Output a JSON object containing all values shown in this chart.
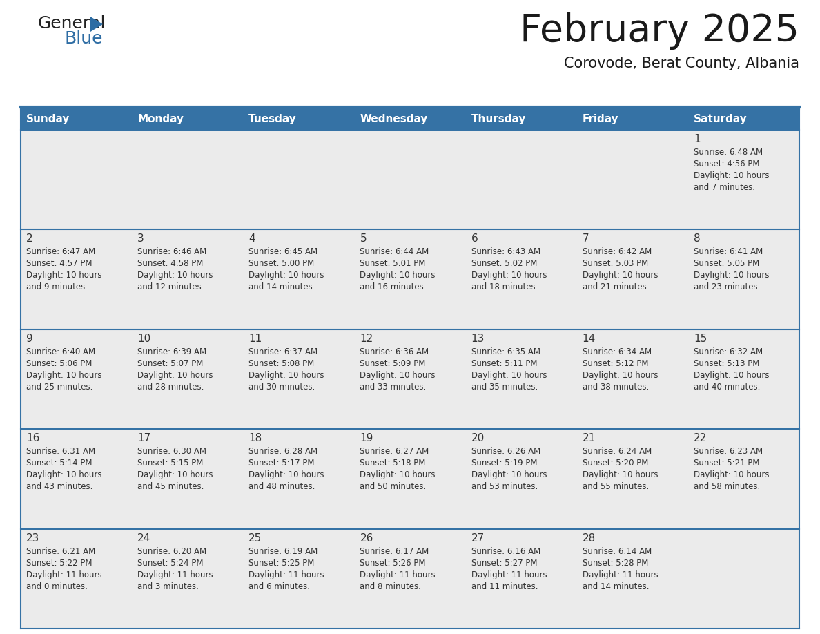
{
  "title": "February 2025",
  "subtitle": "Corovode, Berat County, Albania",
  "header_bg": "#3572A5",
  "header_text_color": "#FFFFFF",
  "cell_bg_light": "#EBEBEB",
  "cell_bg_white": "#FFFFFF",
  "border_color": "#3572A5",
  "day_headers": [
    "Sunday",
    "Monday",
    "Tuesday",
    "Wednesday",
    "Thursday",
    "Friday",
    "Saturday"
  ],
  "days": [
    {
      "day": 1,
      "col": 6,
      "row": 0,
      "sunrise": "6:48 AM",
      "sunset": "4:56 PM",
      "daylight_line1": "Daylight: 10 hours",
      "daylight_line2": "and 7 minutes."
    },
    {
      "day": 2,
      "col": 0,
      "row": 1,
      "sunrise": "6:47 AM",
      "sunset": "4:57 PM",
      "daylight_line1": "Daylight: 10 hours",
      "daylight_line2": "and 9 minutes."
    },
    {
      "day": 3,
      "col": 1,
      "row": 1,
      "sunrise": "6:46 AM",
      "sunset": "4:58 PM",
      "daylight_line1": "Daylight: 10 hours",
      "daylight_line2": "and 12 minutes."
    },
    {
      "day": 4,
      "col": 2,
      "row": 1,
      "sunrise": "6:45 AM",
      "sunset": "5:00 PM",
      "daylight_line1": "Daylight: 10 hours",
      "daylight_line2": "and 14 minutes."
    },
    {
      "day": 5,
      "col": 3,
      "row": 1,
      "sunrise": "6:44 AM",
      "sunset": "5:01 PM",
      "daylight_line1": "Daylight: 10 hours",
      "daylight_line2": "and 16 minutes."
    },
    {
      "day": 6,
      "col": 4,
      "row": 1,
      "sunrise": "6:43 AM",
      "sunset": "5:02 PM",
      "daylight_line1": "Daylight: 10 hours",
      "daylight_line2": "and 18 minutes."
    },
    {
      "day": 7,
      "col": 5,
      "row": 1,
      "sunrise": "6:42 AM",
      "sunset": "5:03 PM",
      "daylight_line1": "Daylight: 10 hours",
      "daylight_line2": "and 21 minutes."
    },
    {
      "day": 8,
      "col": 6,
      "row": 1,
      "sunrise": "6:41 AM",
      "sunset": "5:05 PM",
      "daylight_line1": "Daylight: 10 hours",
      "daylight_line2": "and 23 minutes."
    },
    {
      "day": 9,
      "col": 0,
      "row": 2,
      "sunrise": "6:40 AM",
      "sunset": "5:06 PM",
      "daylight_line1": "Daylight: 10 hours",
      "daylight_line2": "and 25 minutes."
    },
    {
      "day": 10,
      "col": 1,
      "row": 2,
      "sunrise": "6:39 AM",
      "sunset": "5:07 PM",
      "daylight_line1": "Daylight: 10 hours",
      "daylight_line2": "and 28 minutes."
    },
    {
      "day": 11,
      "col": 2,
      "row": 2,
      "sunrise": "6:37 AM",
      "sunset": "5:08 PM",
      "daylight_line1": "Daylight: 10 hours",
      "daylight_line2": "and 30 minutes."
    },
    {
      "day": 12,
      "col": 3,
      "row": 2,
      "sunrise": "6:36 AM",
      "sunset": "5:09 PM",
      "daylight_line1": "Daylight: 10 hours",
      "daylight_line2": "and 33 minutes."
    },
    {
      "day": 13,
      "col": 4,
      "row": 2,
      "sunrise": "6:35 AM",
      "sunset": "5:11 PM",
      "daylight_line1": "Daylight: 10 hours",
      "daylight_line2": "and 35 minutes."
    },
    {
      "day": 14,
      "col": 5,
      "row": 2,
      "sunrise": "6:34 AM",
      "sunset": "5:12 PM",
      "daylight_line1": "Daylight: 10 hours",
      "daylight_line2": "and 38 minutes."
    },
    {
      "day": 15,
      "col": 6,
      "row": 2,
      "sunrise": "6:32 AM",
      "sunset": "5:13 PM",
      "daylight_line1": "Daylight: 10 hours",
      "daylight_line2": "and 40 minutes."
    },
    {
      "day": 16,
      "col": 0,
      "row": 3,
      "sunrise": "6:31 AM",
      "sunset": "5:14 PM",
      "daylight_line1": "Daylight: 10 hours",
      "daylight_line2": "and 43 minutes."
    },
    {
      "day": 17,
      "col": 1,
      "row": 3,
      "sunrise": "6:30 AM",
      "sunset": "5:15 PM",
      "daylight_line1": "Daylight: 10 hours",
      "daylight_line2": "and 45 minutes."
    },
    {
      "day": 18,
      "col": 2,
      "row": 3,
      "sunrise": "6:28 AM",
      "sunset": "5:17 PM",
      "daylight_line1": "Daylight: 10 hours",
      "daylight_line2": "and 48 minutes."
    },
    {
      "day": 19,
      "col": 3,
      "row": 3,
      "sunrise": "6:27 AM",
      "sunset": "5:18 PM",
      "daylight_line1": "Daylight: 10 hours",
      "daylight_line2": "and 50 minutes."
    },
    {
      "day": 20,
      "col": 4,
      "row": 3,
      "sunrise": "6:26 AM",
      "sunset": "5:19 PM",
      "daylight_line1": "Daylight: 10 hours",
      "daylight_line2": "and 53 minutes."
    },
    {
      "day": 21,
      "col": 5,
      "row": 3,
      "sunrise": "6:24 AM",
      "sunset": "5:20 PM",
      "daylight_line1": "Daylight: 10 hours",
      "daylight_line2": "and 55 minutes."
    },
    {
      "day": 22,
      "col": 6,
      "row": 3,
      "sunrise": "6:23 AM",
      "sunset": "5:21 PM",
      "daylight_line1": "Daylight: 10 hours",
      "daylight_line2": "and 58 minutes."
    },
    {
      "day": 23,
      "col": 0,
      "row": 4,
      "sunrise": "6:21 AM",
      "sunset": "5:22 PM",
      "daylight_line1": "Daylight: 11 hours",
      "daylight_line2": "and 0 minutes."
    },
    {
      "day": 24,
      "col": 1,
      "row": 4,
      "sunrise": "6:20 AM",
      "sunset": "5:24 PM",
      "daylight_line1": "Daylight: 11 hours",
      "daylight_line2": "and 3 minutes."
    },
    {
      "day": 25,
      "col": 2,
      "row": 4,
      "sunrise": "6:19 AM",
      "sunset": "5:25 PM",
      "daylight_line1": "Daylight: 11 hours",
      "daylight_line2": "and 6 minutes."
    },
    {
      "day": 26,
      "col": 3,
      "row": 4,
      "sunrise": "6:17 AM",
      "sunset": "5:26 PM",
      "daylight_line1": "Daylight: 11 hours",
      "daylight_line2": "and 8 minutes."
    },
    {
      "day": 27,
      "col": 4,
      "row": 4,
      "sunrise": "6:16 AM",
      "sunset": "5:27 PM",
      "daylight_line1": "Daylight: 11 hours",
      "daylight_line2": "and 11 minutes."
    },
    {
      "day": 28,
      "col": 5,
      "row": 4,
      "sunrise": "6:14 AM",
      "sunset": "5:28 PM",
      "daylight_line1": "Daylight: 11 hours",
      "daylight_line2": "and 14 minutes."
    }
  ],
  "num_rows": 5,
  "num_cols": 7
}
